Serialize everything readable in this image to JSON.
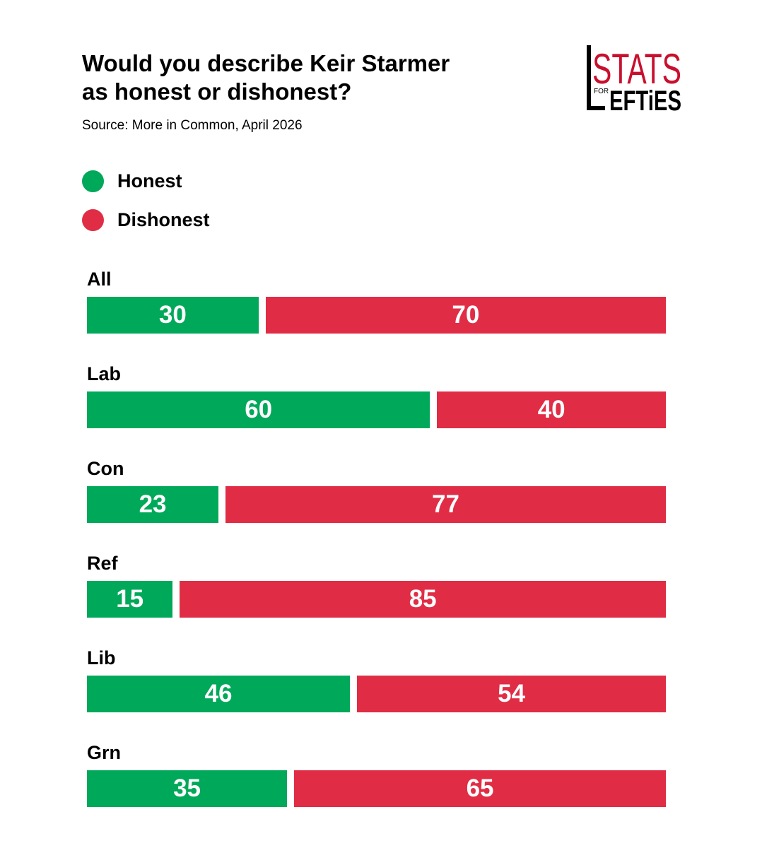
{
  "header": {
    "title_line1": "Would you describe Keir Starmer",
    "title_line2": "as honest or dishonest?",
    "source": "Source: More in Common, April 2026"
  },
  "logo": {
    "word_top": "STATS",
    "word_small": "FOR",
    "word_bottom": "EFTiES",
    "letter": "L",
    "color_red": "#c8102e"
  },
  "colors": {
    "honest": "#00a859",
    "dishonest": "#e02d45"
  },
  "chart_data": {
    "type": "bar",
    "orientation": "horizontal",
    "stacked": true,
    "categories": [
      "All",
      "Lab",
      "Con",
      "Ref",
      "Lib",
      "Grn"
    ],
    "series": [
      {
        "name": "Honest",
        "values": [
          30,
          60,
          23,
          15,
          46,
          35
        ]
      },
      {
        "name": "Dishonest",
        "values": [
          70,
          40,
          77,
          85,
          54,
          65
        ]
      }
    ],
    "title": "Would you describe Keir Starmer as honest or dishonest?",
    "xlim": [
      0,
      100
    ],
    "legend": "top-left",
    "grid": false
  }
}
